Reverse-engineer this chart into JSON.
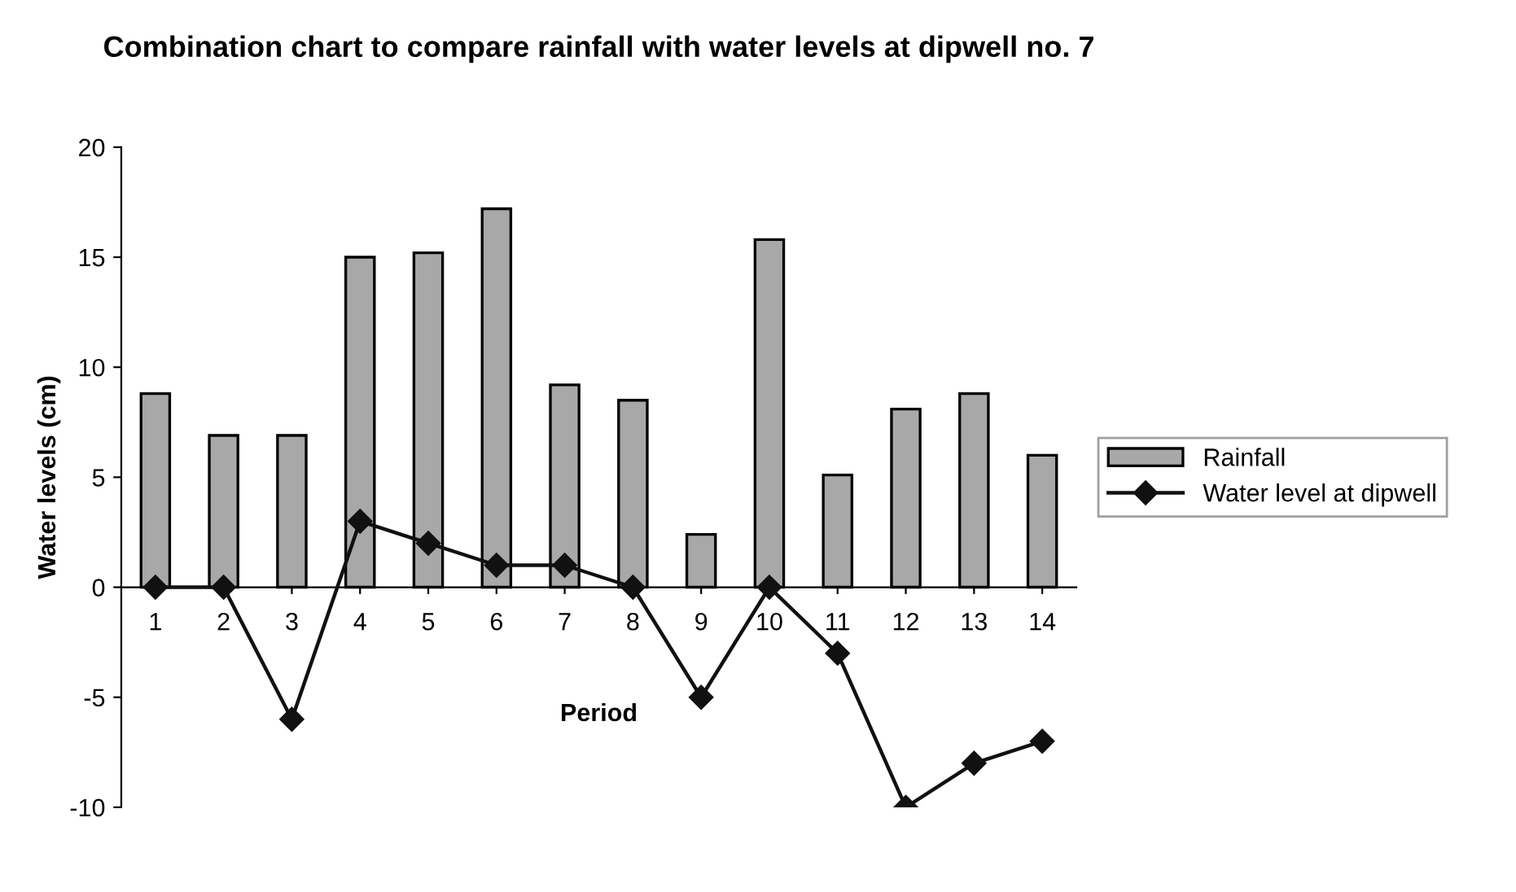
{
  "chart_data": {
    "type": "bar",
    "title": "Combination chart to compare rainfall with water levels at dipwell no. 7",
    "xlabel": "Period",
    "ylabel": "Water levels (cm)",
    "categories": [
      "1",
      "2",
      "3",
      "4",
      "5",
      "6",
      "7",
      "8",
      "9",
      "10",
      "11",
      "12",
      "13",
      "14"
    ],
    "series": [
      {
        "name": "Rainfall",
        "color": "#a8a8a8",
        "values": [
          8.8,
          6.9,
          6.9,
          15.0,
          15.2,
          17.2,
          9.2,
          8.5,
          2.4,
          15.8,
          5.1,
          8.1,
          8.8,
          6.0
        ]
      },
      {
        "name": "Water level at dipwell",
        "type": "line",
        "color": "#111111",
        "marker": "diamond",
        "values": [
          0,
          0,
          -6,
          3,
          2,
          1,
          1,
          0,
          -5,
          0,
          -3,
          -10,
          -8,
          -7
        ]
      }
    ],
    "ylim": [
      -10,
      20
    ],
    "yticks": [
      -10,
      -5,
      0,
      5,
      10,
      15,
      20
    ],
    "grid": false,
    "legend": "right"
  }
}
